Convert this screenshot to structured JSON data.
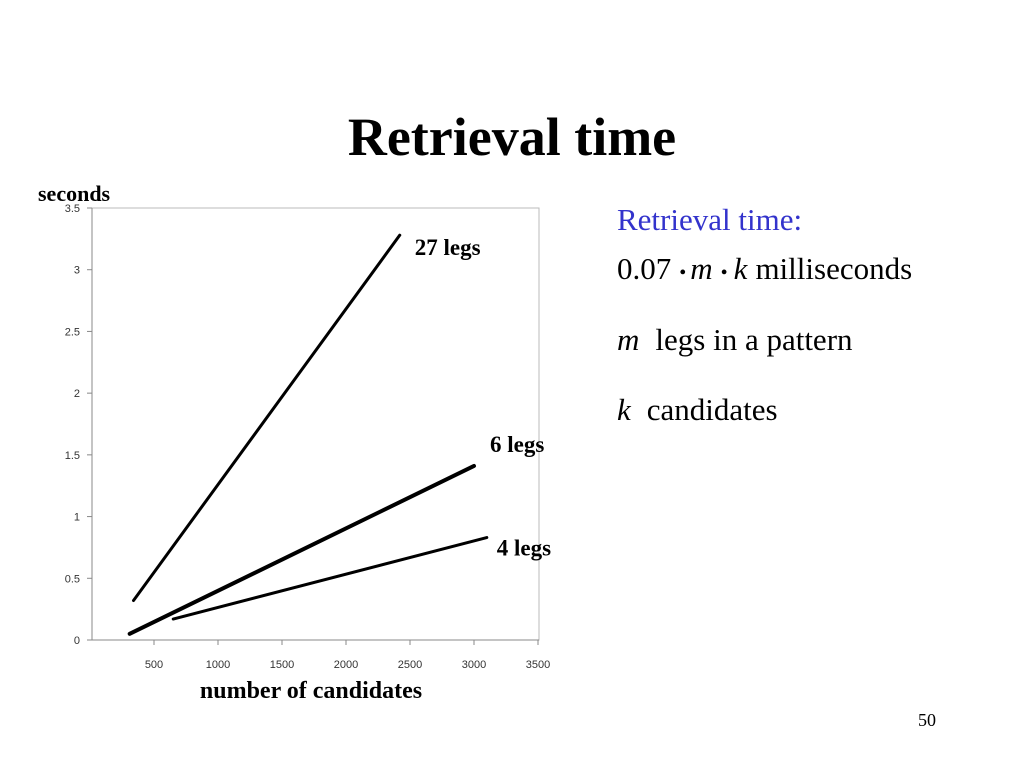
{
  "title": "Retrieval time",
  "notes": {
    "heading": "Retrieval time:",
    "formula": [
      "0.07",
      "•",
      "m",
      "•",
      "k",
      "milliseconds"
    ],
    "m_line": [
      "m",
      "legs in a pattern"
    ],
    "k_line": [
      "k",
      "candidates"
    ]
  },
  "page_number": "50",
  "chart_data": {
    "type": "line",
    "y_label": "seconds",
    "x_label": "number of candidates",
    "xlim": [
      0,
      3500
    ],
    "xticks": [
      500,
      1000,
      1500,
      2000,
      2500,
      3000,
      3500
    ],
    "ylim": [
      0,
      3.5
    ],
    "yticks": [
      0,
      0.5,
      1,
      1.5,
      2,
      2.5,
      3,
      3.5
    ],
    "series": [
      {
        "name": "27 legs",
        "color": "#000000",
        "x": [
          340,
          2420
        ],
        "values": [
          0.32,
          3.28
        ]
      },
      {
        "name": "6 legs",
        "color": "#000000",
        "x": [
          310,
          3000
        ],
        "values": [
          0.05,
          1.41
        ]
      },
      {
        "name": "4 legs",
        "color": "#000000",
        "x": [
          650,
          3100
        ],
        "values": [
          0.17,
          0.83
        ]
      }
    ]
  }
}
